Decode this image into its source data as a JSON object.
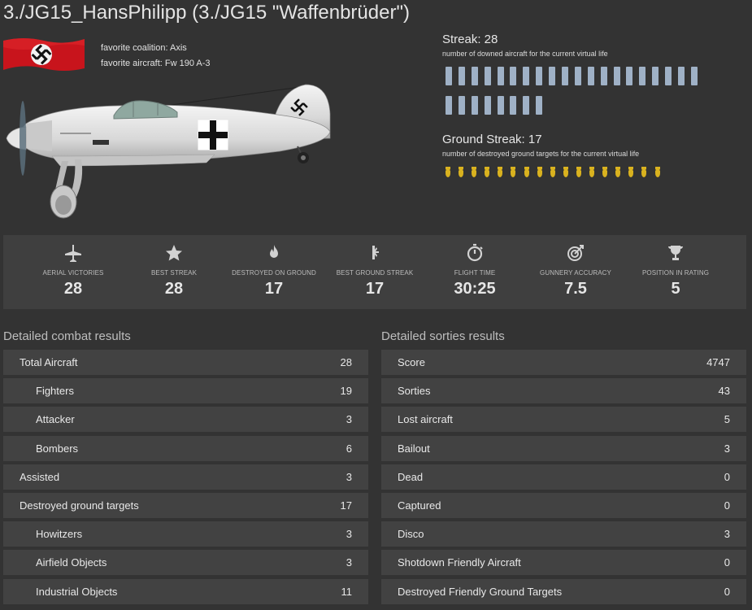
{
  "header": {
    "title": "3./JG15_HansPhilipp (3./JG15 \"Waffenbrüder\")"
  },
  "profile": {
    "coalition": "favorite coalition: Axis",
    "aircraft": "favorite aircraft: Fw 190 A-3"
  },
  "streak": {
    "title": "Streak: 28",
    "subtitle": "number of downed aircraft for the current virtual life",
    "value": 28,
    "bar_color": "#9fb1c6"
  },
  "ground_streak": {
    "title": "Ground Streak: 17",
    "subtitle": "number of destroyed ground targets for the current virtual life",
    "value": 17,
    "bomb_color": "#d9b21f"
  },
  "stats": [
    {
      "icon": "plane-icon",
      "label": "AERIAL VICTORIES",
      "value": "28"
    },
    {
      "icon": "star-icon",
      "label": "BEST STREAK",
      "value": "28"
    },
    {
      "icon": "fire-icon",
      "label": "DESTROYED ON GROUND",
      "value": "17"
    },
    {
      "icon": "bomb-burst-icon",
      "label": "BEST GROUND STREAK",
      "value": "17"
    },
    {
      "icon": "stopwatch-icon",
      "label": "FLIGHT TIME",
      "value": "30:25"
    },
    {
      "icon": "target-icon",
      "label": "GUNNERY ACCURACY",
      "value": "7.5"
    },
    {
      "icon": "trophy-icon",
      "label": "POSITION IN RATING",
      "value": "5"
    }
  ],
  "combat": {
    "title": "Detailed combat results",
    "rows": [
      {
        "label": "Total Aircraft",
        "value": "28",
        "indent": false
      },
      {
        "label": "Fighters",
        "value": "19",
        "indent": true
      },
      {
        "label": "Attacker",
        "value": "3",
        "indent": true
      },
      {
        "label": "Bombers",
        "value": "6",
        "indent": true
      },
      {
        "label": "Assisted",
        "value": "3",
        "indent": false
      },
      {
        "label": "Destroyed ground targets",
        "value": "17",
        "indent": false
      },
      {
        "label": "Howitzers",
        "value": "3",
        "indent": true
      },
      {
        "label": "Airfield Objects",
        "value": "3",
        "indent": true
      },
      {
        "label": "Industrial Objects",
        "value": "11",
        "indent": true
      }
    ]
  },
  "sorties": {
    "title": "Detailed sorties results",
    "rows": [
      {
        "label": "Score",
        "value": "4747",
        "indent": false
      },
      {
        "label": "Sorties",
        "value": "43",
        "indent": false
      },
      {
        "label": "Lost aircraft",
        "value": "5",
        "indent": false
      },
      {
        "label": "Bailout",
        "value": "3",
        "indent": false
      },
      {
        "label": "Dead",
        "value": "0",
        "indent": false
      },
      {
        "label": "Captured",
        "value": "0",
        "indent": false
      },
      {
        "label": "Disco",
        "value": "3",
        "indent": false
      },
      {
        "label": "Shotdown Friendly Aircraft",
        "value": "0",
        "indent": false
      },
      {
        "label": "Destroyed Friendly Ground Targets",
        "value": "0",
        "indent": false
      }
    ]
  }
}
